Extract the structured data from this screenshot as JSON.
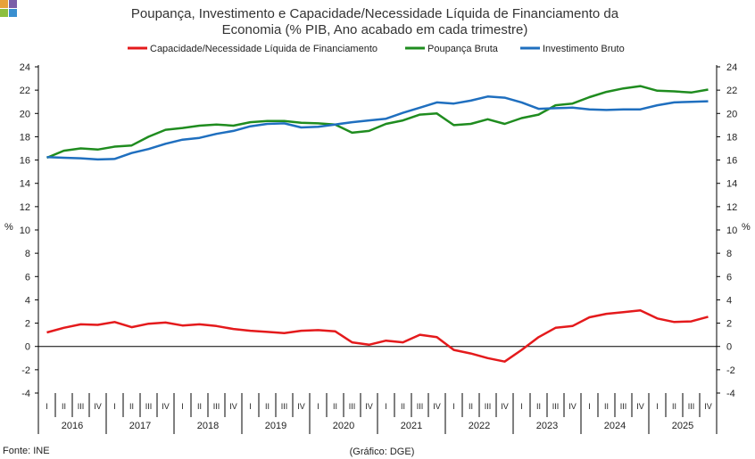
{
  "logo": {
    "colors": [
      "#e8a13a",
      "#7a5ea8",
      "#8cbf3f",
      "#3a8fd0"
    ]
  },
  "chart_data": {
    "type": "line",
    "title_line1": "Poupança, Investimento e Capacidade/Necessidade Líquida de Financiamento da",
    "title_line2": "Economia (% PIB, Ano acabado em cada trimestre)",
    "ylabel_left": "%",
    "ylabel_right": "%",
    "ylim": [
      -4,
      24
    ],
    "yticks": [
      -4,
      -2,
      0,
      2,
      4,
      6,
      8,
      10,
      12,
      14,
      16,
      18,
      20,
      22,
      24
    ],
    "quarter_labels": [
      "I",
      "II",
      "III",
      "IV"
    ],
    "years": [
      "2016",
      "2017",
      "2018",
      "2019",
      "2020",
      "2021",
      "2022",
      "2023",
      "2024",
      "2025"
    ],
    "legend_position": "top",
    "series": [
      {
        "name": "Capacidade/Necessidade Líquida de Financiamento",
        "color": "#e41a1c",
        "values": [
          1.2,
          1.6,
          1.9,
          1.85,
          2.1,
          1.65,
          1.95,
          2.05,
          1.8,
          1.9,
          1.75,
          1.5,
          1.35,
          1.25,
          1.15,
          1.35,
          1.4,
          1.3,
          0.35,
          0.15,
          0.5,
          0.35,
          1.0,
          0.8,
          -0.3,
          -0.6,
          -1.0,
          -1.3,
          -0.3,
          0.8,
          1.6,
          1.75,
          2.5,
          2.8,
          2.95,
          3.1,
          2.4,
          2.1,
          2.15,
          2.55
        ]
      },
      {
        "name": "Poupança Bruta",
        "color": "#1f8c1f",
        "values": [
          16.2,
          16.8,
          17.0,
          16.9,
          17.15,
          17.25,
          18.0,
          18.6,
          18.75,
          18.95,
          19.05,
          18.95,
          19.25,
          19.35,
          19.35,
          19.2,
          19.15,
          19.05,
          18.35,
          18.5,
          19.1,
          19.4,
          19.9,
          20.0,
          19.0,
          19.1,
          19.5,
          19.1,
          19.6,
          19.9,
          20.7,
          20.85,
          21.4,
          21.85,
          22.15,
          22.35,
          21.95,
          21.9,
          21.8,
          22.05
        ]
      },
      {
        "name": "Investimento Bruto",
        "color": "#1f6fbf",
        "values": [
          16.25,
          16.2,
          16.15,
          16.05,
          16.1,
          16.6,
          16.95,
          17.4,
          17.75,
          17.9,
          18.25,
          18.5,
          18.9,
          19.1,
          19.15,
          18.8,
          18.85,
          19.05,
          19.25,
          19.4,
          19.55,
          20.05,
          20.5,
          20.95,
          20.85,
          21.1,
          21.45,
          21.35,
          20.95,
          20.4,
          20.45,
          20.5,
          20.35,
          20.3,
          20.35,
          20.35,
          20.7,
          20.95,
          21.0,
          21.05
        ]
      }
    ]
  },
  "footer": {
    "source": "Fonte: INE",
    "credit": "(Gráfico: DGE)"
  }
}
